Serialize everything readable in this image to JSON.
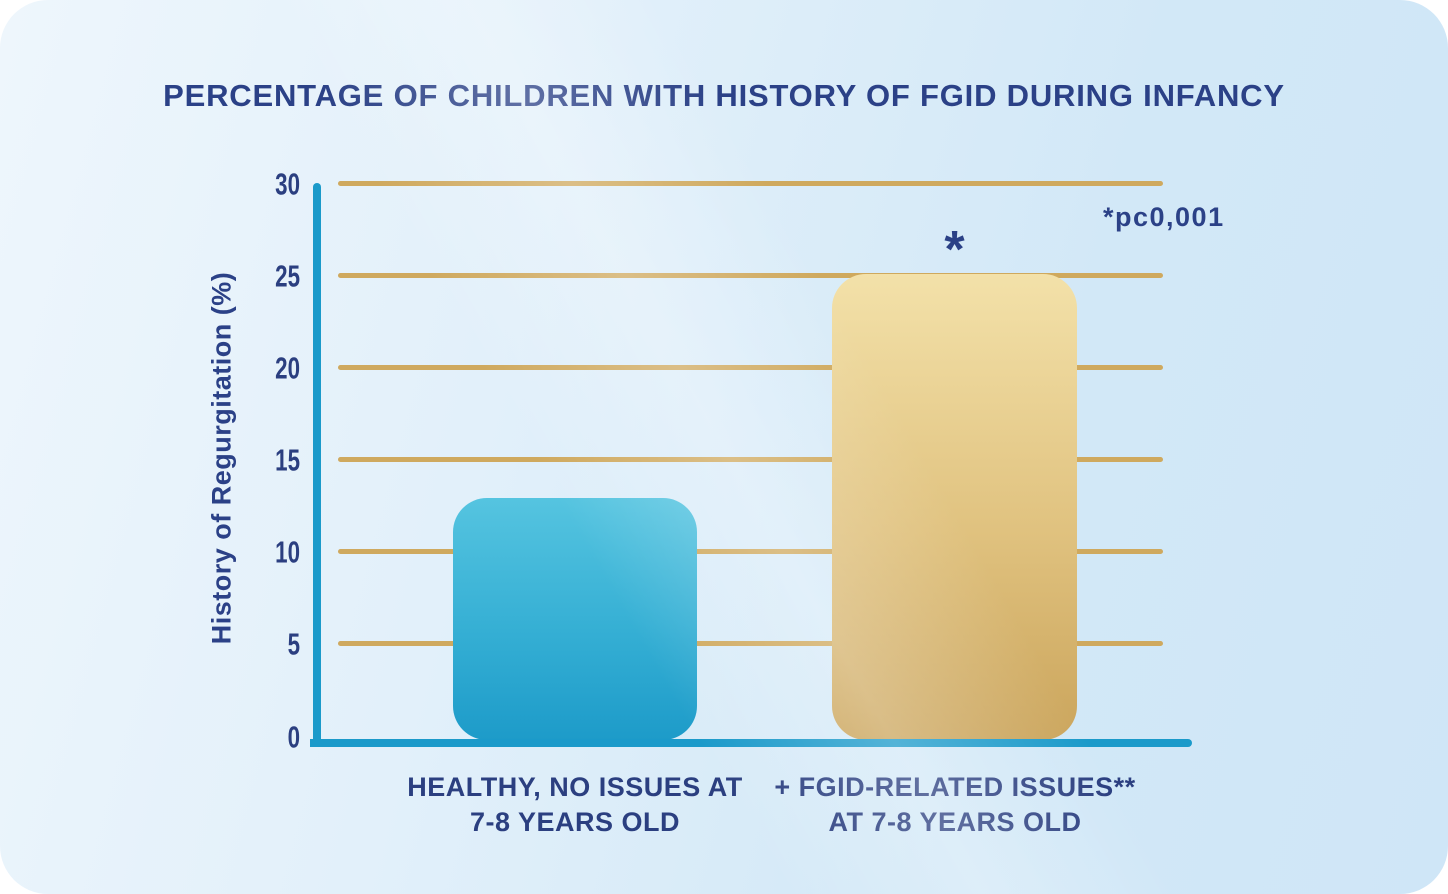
{
  "chart_data": {
    "type": "bar",
    "title": "PERCENTAGE OF CHILDREN WITH HISTORY OF FGID DURING INFANCY",
    "ylabel": "History of Regurgitation (%)",
    "xlabel": "",
    "categories": [
      "HEALTHY, NO ISSUES AT 7-8 YEARS OLD",
      "+ FGID-RELATED ISSUES** AT 7-8 YEARS OLD"
    ],
    "category_lines": [
      [
        "HEALTHY, NO ISSUES AT",
        "7-8 YEARS OLD"
      ],
      [
        "+ FGID-RELATED ISSUES**",
        "AT 7-8 YEARS OLD"
      ]
    ],
    "values": [
      13,
      25
    ],
    "ylim": [
      0,
      30
    ],
    "yticks": [
      "30",
      "25",
      "20",
      "15",
      "10",
      "5",
      "0"
    ],
    "grid": "horizontal gold gridlines at every 5 units",
    "legend": "none",
    "significance_marker": "*",
    "significance_note": "*pc0,001",
    "colors": {
      "bar_healthy_top": "#55c4e0",
      "bar_healthy_bottom": "#1d9bc9",
      "bar_fgid_top": "#f3e1a9",
      "bar_fgid_bottom": "#cba55c",
      "axis": "#1b9aca",
      "gridline": "#cfa95e",
      "text_navy": "#2b4187",
      "background": "#d9ecf9"
    }
  }
}
